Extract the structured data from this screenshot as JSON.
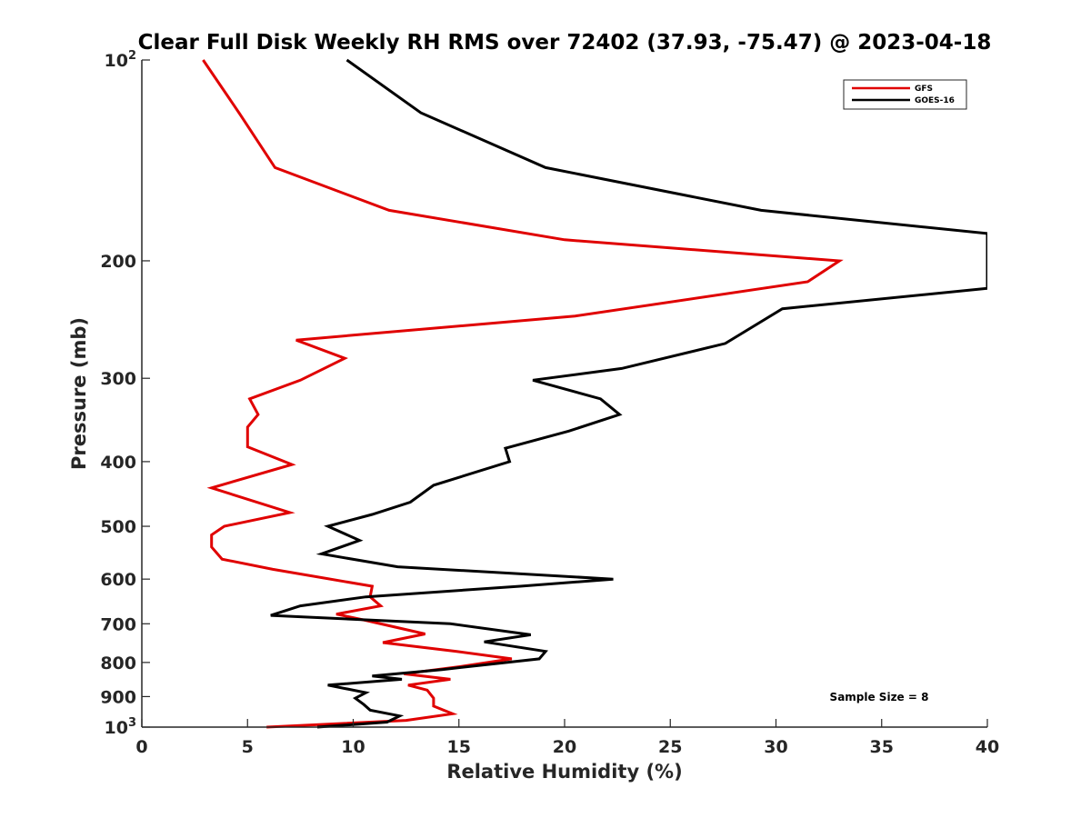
{
  "chart_data": {
    "type": "line",
    "title": "Clear Full Disk Weekly RH RMS over 72402 (37.93, -75.47) @ 2023-04-18",
    "xlabel": "Relative Humidity (%)",
    "ylabel": "Pressure (mb)",
    "xlim": [
      0,
      40
    ],
    "ylim": [
      100,
      1000
    ],
    "y_scale": "log",
    "y_reversed": true,
    "grid": false,
    "legend_position": "top-right",
    "x_ticks": [
      0,
      5,
      10,
      15,
      20,
      25,
      30,
      35,
      40
    ],
    "y_ticks": [
      {
        "value": 100,
        "label": "10",
        "sup": "2"
      },
      {
        "value": 200,
        "label": "200"
      },
      {
        "value": 300,
        "label": "300"
      },
      {
        "value": 400,
        "label": "400"
      },
      {
        "value": 500,
        "label": "500"
      },
      {
        "value": 600,
        "label": "600"
      },
      {
        "value": 700,
        "label": "700"
      },
      {
        "value": 800,
        "label": "800"
      },
      {
        "value": 900,
        "label": "900"
      },
      {
        "value": 1000,
        "label": "10",
        "sup": "3"
      }
    ],
    "series": [
      {
        "name": "GFS",
        "color": "#e00000",
        "points": [
          [
            2.9,
            100
          ],
          [
            4.6,
            120
          ],
          [
            6.3,
            145
          ],
          [
            11.7,
            168
          ],
          [
            20.0,
            186
          ],
          [
            33.0,
            200
          ],
          [
            31.5,
            215
          ],
          [
            20.5,
            242
          ],
          [
            7.3,
            263
          ],
          [
            9.6,
            280
          ],
          [
            7.5,
            302
          ],
          [
            5.1,
            322
          ],
          [
            5.5,
            340
          ],
          [
            5.0,
            355
          ],
          [
            5.0,
            380
          ],
          [
            7.1,
            404
          ],
          [
            3.3,
            438
          ],
          [
            7.0,
            477
          ],
          [
            3.9,
            500
          ],
          [
            3.3,
            515
          ],
          [
            3.3,
            537
          ],
          [
            3.8,
            560
          ],
          [
            6.2,
            580
          ],
          [
            10.9,
            615
          ],
          [
            10.8,
            638
          ],
          [
            11.3,
            658
          ],
          [
            9.2,
            677
          ],
          [
            10.6,
            692
          ],
          [
            13.4,
            725
          ],
          [
            11.4,
            747
          ],
          [
            14.9,
            770
          ],
          [
            17.5,
            790
          ],
          [
            15.0,
            812
          ],
          [
            12.4,
            832
          ],
          [
            14.6,
            848
          ],
          [
            12.6,
            865
          ],
          [
            13.5,
            880
          ],
          [
            13.8,
            905
          ],
          [
            13.8,
            930
          ],
          [
            14.7,
            955
          ],
          [
            12.5,
            977
          ],
          [
            5.9,
            1000
          ]
        ]
      },
      {
        "name": "GOES-16",
        "color": "#000000",
        "points": [
          [
            9.7,
            100
          ],
          [
            13.2,
            120
          ],
          [
            19.1,
            145
          ],
          [
            29.3,
            168
          ],
          [
            40.0,
            182
          ],
          [
            40.0,
            220
          ],
          [
            30.3,
            236
          ],
          [
            27.6,
            266
          ],
          [
            22.7,
            290
          ],
          [
            18.5,
            302
          ],
          [
            21.7,
            322
          ],
          [
            22.6,
            340
          ],
          [
            20.2,
            360
          ],
          [
            17.2,
            382
          ],
          [
            17.4,
            400
          ],
          [
            13.8,
            434
          ],
          [
            12.7,
            460
          ],
          [
            10.9,
            480
          ],
          [
            8.8,
            500
          ],
          [
            10.3,
            525
          ],
          [
            8.5,
            550
          ],
          [
            12.1,
            575
          ],
          [
            22.3,
            600
          ],
          [
            17.9,
            615
          ],
          [
            10.6,
            638
          ],
          [
            7.5,
            658
          ],
          [
            6.1,
            680
          ],
          [
            14.6,
            700
          ],
          [
            18.4,
            727
          ],
          [
            16.2,
            745
          ],
          [
            19.1,
            770
          ],
          [
            18.8,
            790
          ],
          [
            14.2,
            820
          ],
          [
            10.9,
            838
          ],
          [
            12.3,
            848
          ],
          [
            8.8,
            865
          ],
          [
            10.6,
            888
          ],
          [
            10.1,
            905
          ],
          [
            10.5,
            925
          ],
          [
            10.8,
            943
          ],
          [
            12.2,
            962
          ],
          [
            11.6,
            983
          ],
          [
            8.3,
            1000
          ]
        ]
      }
    ],
    "annotations": [
      "Sample Size = 8"
    ]
  }
}
